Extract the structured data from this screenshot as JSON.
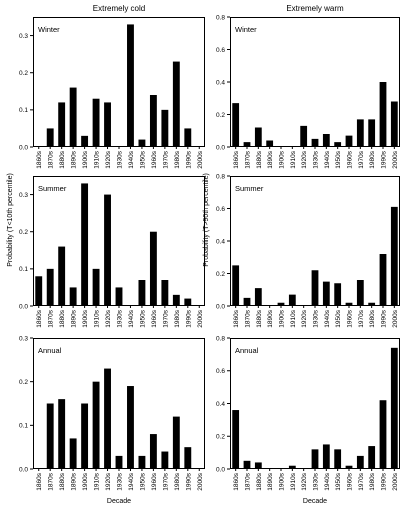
{
  "column_titles": [
    "Extremely cold",
    "Extremely warm"
  ],
  "ylabels": {
    "left": "Probability (T<10th percentile)",
    "right": "Probability (T>90th percentile)"
  },
  "xlabel": "Decade",
  "colors": {
    "bar": "#000000",
    "axis": "#000000",
    "background": "#ffffff"
  },
  "chart_data": [
    {
      "type": "bar",
      "panel": "Winter",
      "column": "Extremely cold",
      "categories": [
        "1860s",
        "1870s",
        "1880s",
        "1890s",
        "1900s",
        "1910s",
        "1920s",
        "1930s",
        "1940s",
        "1950s",
        "1960s",
        "1970s",
        "1980s",
        "1990s",
        "2000s"
      ],
      "values": [
        0,
        0.05,
        0.12,
        0.16,
        0.03,
        0.13,
        0.12,
        0,
        0.33,
        0.02,
        0.14,
        0.1,
        0.23,
        0.05,
        0
      ],
      "ylim": [
        0,
        0.35
      ],
      "yticks": [
        "0.0",
        "0.1",
        "0.2",
        "0.3"
      ],
      "ytick_values": [
        0,
        0.1,
        0.2,
        0.3
      ]
    },
    {
      "type": "bar",
      "panel": "Winter",
      "column": "Extremely warm",
      "categories": [
        "1860s",
        "1870s",
        "1880s",
        "1890s",
        "1900s",
        "1910s",
        "1920s",
        "1930s",
        "1940s",
        "1950s",
        "1960s",
        "1970s",
        "1980s",
        "1990s",
        "2000s"
      ],
      "values": [
        0.27,
        0.03,
        0.12,
        0.04,
        0,
        0,
        0.13,
        0.05,
        0.08,
        0.03,
        0.07,
        0.17,
        0.17,
        0.4,
        0.28
      ],
      "ylim": [
        0,
        0.8
      ],
      "yticks": [
        "0.0",
        "0.2",
        "0.4",
        "0.6",
        "0.8"
      ],
      "ytick_values": [
        0,
        0.2,
        0.4,
        0.6,
        0.8
      ]
    },
    {
      "type": "bar",
      "panel": "Summer",
      "column": "Extremely cold",
      "categories": [
        "1860s",
        "1870s",
        "1880s",
        "1890s",
        "1900s",
        "1910s",
        "1920s",
        "1930s",
        "1940s",
        "1950s",
        "1960s",
        "1970s",
        "1980s",
        "1990s",
        "2000s"
      ],
      "values": [
        0.08,
        0.1,
        0.16,
        0.05,
        0.33,
        0.1,
        0.3,
        0.05,
        0,
        0.07,
        0.2,
        0.07,
        0.03,
        0.02,
        0
      ],
      "ylim": [
        0,
        0.35
      ],
      "yticks": [
        "0.0",
        "0.1",
        "0.2",
        "0.3"
      ],
      "ytick_values": [
        0,
        0.1,
        0.2,
        0.3
      ]
    },
    {
      "type": "bar",
      "panel": "Summer",
      "column": "Extremely warm",
      "categories": [
        "1860s",
        "1870s",
        "1880s",
        "1890s",
        "1900s",
        "1910s",
        "1920s",
        "1930s",
        "1940s",
        "1950s",
        "1960s",
        "1970s",
        "1980s",
        "1990s",
        "2000s"
      ],
      "values": [
        0.25,
        0.05,
        0.11,
        0,
        0.02,
        0.07,
        0,
        0.22,
        0.15,
        0.14,
        0.02,
        0.16,
        0.02,
        0.32,
        0.61
      ],
      "ylim": [
        0,
        0.8
      ],
      "yticks": [
        "0.0",
        "0.2",
        "0.4",
        "0.6",
        "0.8"
      ],
      "ytick_values": [
        0,
        0.2,
        0.4,
        0.6,
        0.8
      ]
    },
    {
      "type": "bar",
      "panel": "Annual",
      "column": "Extremely cold",
      "categories": [
        "1860s",
        "1870s",
        "1880s",
        "1890s",
        "1900s",
        "1910s",
        "1920s",
        "1930s",
        "1940s",
        "1950s",
        "1960s",
        "1970s",
        "1980s",
        "1990s",
        "2000s"
      ],
      "values": [
        0,
        0.15,
        0.16,
        0.07,
        0.15,
        0.2,
        0.23,
        0.03,
        0.19,
        0.03,
        0.08,
        0.04,
        0.12,
        0.05,
        0
      ],
      "ylim": [
        0,
        0.3
      ],
      "yticks": [
        "0.0",
        "0.1",
        "0.2",
        "0.3"
      ],
      "ytick_values": [
        0,
        0.1,
        0.2,
        0.3
      ]
    },
    {
      "type": "bar",
      "panel": "Annual",
      "column": "Extremely warm",
      "categories": [
        "1860s",
        "1870s",
        "1880s",
        "1890s",
        "1900s",
        "1910s",
        "1920s",
        "1930s",
        "1940s",
        "1950s",
        "1960s",
        "1970s",
        "1980s",
        "1990s",
        "2000s"
      ],
      "values": [
        0.36,
        0.05,
        0.04,
        0,
        0,
        0.02,
        0,
        0.12,
        0.15,
        0.12,
        0.02,
        0.08,
        0.14,
        0.42,
        0.74
      ],
      "ylim": [
        0,
        0.8
      ],
      "yticks": [
        "0.0",
        "0.2",
        "0.4",
        "0.6",
        "0.8"
      ],
      "ytick_values": [
        0,
        0.2,
        0.4,
        0.6,
        0.8
      ]
    }
  ]
}
